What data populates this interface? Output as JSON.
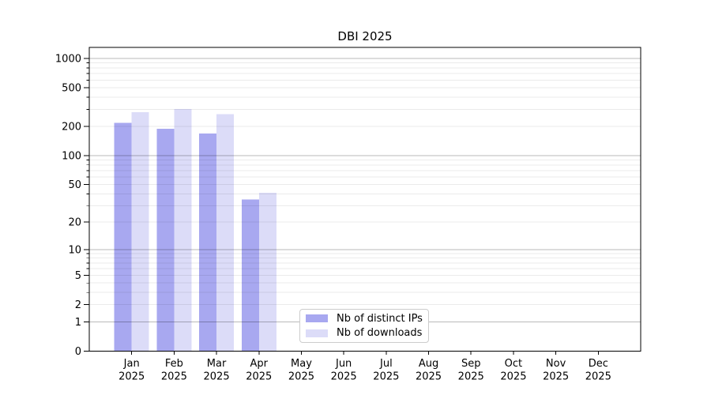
{
  "chart_data": {
    "type": "bar",
    "title": "DBI 2025",
    "categories": [
      {
        "label": "Jan",
        "sub": "2025"
      },
      {
        "label": "Feb",
        "sub": "2025"
      },
      {
        "label": "Mar",
        "sub": "2025"
      },
      {
        "label": "Apr",
        "sub": "2025"
      },
      {
        "label": "May",
        "sub": "2025"
      },
      {
        "label": "Jun",
        "sub": "2025"
      },
      {
        "label": "Jul",
        "sub": "2025"
      },
      {
        "label": "Aug",
        "sub": "2025"
      },
      {
        "label": "Sep",
        "sub": "2025"
      },
      {
        "label": "Oct",
        "sub": "2025"
      },
      {
        "label": "Nov",
        "sub": "2025"
      },
      {
        "label": "Dec",
        "sub": "2025"
      }
    ],
    "series": [
      {
        "name": "Nb of distinct IPs",
        "color": "#a8a8f0",
        "values": [
          218,
          190,
          170,
          35,
          null,
          null,
          null,
          null,
          null,
          null,
          null,
          null
        ]
      },
      {
        "name": "Nb of downloads",
        "color": "#dcdcf8",
        "values": [
          280,
          302,
          268,
          41,
          null,
          null,
          null,
          null,
          null,
          null,
          null,
          null
        ]
      }
    ],
    "y_axis": {
      "scale": "log1p",
      "ticks": [
        1000,
        500,
        200,
        100,
        50,
        20,
        10,
        5,
        2,
        1,
        0
      ],
      "major_grid": [
        1000,
        100,
        10,
        1
      ],
      "range": [
        0,
        1300
      ]
    },
    "xlabel": "",
    "ylabel": "",
    "grid": "horizontal (major + minor)",
    "legend_position": "inside-bottom-center",
    "colors": {
      "axis": "#000000",
      "text": "#000000",
      "major_grid": "#bdbdbd",
      "minor_grid": "#ebebeb",
      "legend_border": "#cccccc",
      "background": "#ffffff"
    }
  }
}
